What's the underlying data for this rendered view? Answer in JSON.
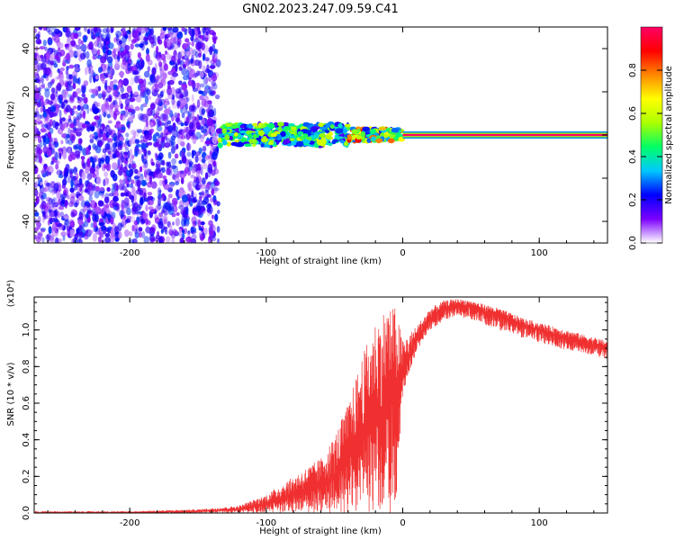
{
  "title": "GN02.2023.247.09.59.C41",
  "chart_data": [
    {
      "type": "heatmap",
      "xlabel": "Height of straight line (km)",
      "ylabel": "Frequency (Hz)",
      "xlim": [
        -270,
        150
      ],
      "ylim": [
        -50,
        50
      ],
      "x_ticks": [
        -200,
        -100,
        0,
        100
      ],
      "x_tick_labels": [
        "-200",
        "-100",
        "0",
        "100"
      ],
      "y_ticks": [
        -40,
        -20,
        0,
        20,
        40
      ],
      "y_tick_labels": [
        "-40",
        "-20",
        "0",
        "20",
        "40"
      ],
      "colorbar": {
        "label": "Normalized spectral amplitude",
        "range": [
          0,
          1
        ],
        "ticks": [
          0.0,
          0.2,
          0.4,
          0.6,
          0.8
        ],
        "tick_labels": [
          "0.0",
          "0.2",
          "0.4",
          "0.6",
          "0.8"
        ],
        "colormap": [
          "#ffffff",
          "#7b00ff",
          "#0000ff",
          "#00c8ff",
          "#00ff66",
          "#aaff00",
          "#ffff00",
          "#ff8800",
          "#ff0000",
          "#ff0066"
        ]
      },
      "regions": [
        {
          "x_range": [
            -270,
            -135
          ],
          "freq_range": [
            -50,
            50
          ],
          "amplitude": 0.1,
          "pattern": "scattered noise"
        },
        {
          "x_range": [
            -135,
            -40
          ],
          "freq_range": [
            -5,
            5
          ],
          "amplitude": 0.45,
          "pattern": "broad band"
        },
        {
          "x_range": [
            -40,
            0
          ],
          "freq_range": [
            -3,
            3
          ],
          "amplitude": 0.65,
          "pattern": "narrowing band"
        },
        {
          "x_range": [
            0,
            150
          ],
          "freq_range": [
            -1,
            1
          ],
          "amplitude": 1.0,
          "pattern": "steady line at 0 Hz"
        }
      ],
      "grid": false
    },
    {
      "type": "line",
      "xlabel": "Height of straight line (km)",
      "ylabel": "SNR (10 * v/v)",
      "y_scale_label": "(x10⁴)",
      "xlim": [
        -270,
        150
      ],
      "ylim": [
        0,
        1.18
      ],
      "x_ticks": [
        -200,
        -100,
        0,
        100
      ],
      "x_tick_labels": [
        "-200",
        "-100",
        "0",
        "100"
      ],
      "y_ticks": [
        0.0,
        0.2,
        0.4,
        0.6,
        0.8,
        1.0
      ],
      "y_tick_labels": [
        "0.0",
        "0.2",
        "0.4",
        "0.6",
        "0.8",
        "1.0"
      ],
      "series": [
        {
          "color": "#f03030",
          "x": [
            -270,
            -200,
            -150,
            -120,
            -100,
            -80,
            -60,
            -50,
            -40,
            -30,
            -20,
            -10,
            -5,
            0,
            10,
            20,
            30,
            40,
            50,
            60,
            70,
            80,
            90,
            100,
            110,
            120,
            130,
            140,
            150
          ],
          "values": [
            0.0,
            0.0,
            0.01,
            0.02,
            0.05,
            0.1,
            0.15,
            0.2,
            0.3,
            0.45,
            0.55,
            0.6,
            0.65,
            0.75,
            0.95,
            1.06,
            1.12,
            1.14,
            1.13,
            1.1,
            1.08,
            1.05,
            1.02,
            1.0,
            0.98,
            0.96,
            0.94,
            0.92,
            0.9
          ],
          "envelope_low": [
            0.0,
            0.0,
            0.0,
            0.0,
            0.0,
            0.0,
            0.0,
            0.0,
            0.0,
            0.0,
            0.0,
            0.0,
            0.0,
            0.65,
            0.88,
            1.0,
            1.05,
            1.07,
            1.06,
            1.03,
            1.0,
            0.98,
            0.95,
            0.93,
            0.91,
            0.89,
            0.88,
            0.86,
            0.84
          ],
          "envelope_high": [
            0.01,
            0.01,
            0.02,
            0.04,
            0.1,
            0.2,
            0.3,
            0.42,
            0.6,
            0.85,
            1.05,
            1.15,
            1.12,
            0.95,
            1.02,
            1.12,
            1.16,
            1.17,
            1.16,
            1.14,
            1.12,
            1.09,
            1.06,
            1.04,
            1.02,
            1.0,
            0.98,
            0.96,
            0.94
          ]
        }
      ],
      "grid": false
    }
  ]
}
